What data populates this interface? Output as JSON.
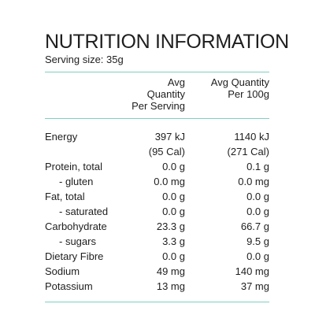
{
  "panel": {
    "title": "NUTRITION INFORMATION",
    "serving_size": "Serving size: 35g"
  },
  "header": {
    "per_serving": [
      "Avg Quantity",
      "Per Serving"
    ],
    "per_100g": [
      "Avg Quantity",
      "Per 100g"
    ]
  },
  "rows": [
    {
      "name": "Energy",
      "indent": false,
      "per_serving": "397 kJ",
      "per_100g": "1140 kJ"
    },
    {
      "name": "",
      "indent": false,
      "per_serving": "(95 Cal)",
      "per_100g": "(271 Cal)"
    },
    {
      "name": "Protein, total",
      "indent": false,
      "per_serving": "0.0 g",
      "per_100g": "0.1 g"
    },
    {
      "name": "- gluten",
      "indent": true,
      "per_serving": "0.0 mg",
      "per_100g": "0.0 mg"
    },
    {
      "name": "Fat, total",
      "indent": false,
      "per_serving": "0.0 g",
      "per_100g": "0.0 g"
    },
    {
      "name": "- saturated",
      "indent": true,
      "per_serving": "0.0 g",
      "per_100g": "0.0 g"
    },
    {
      "name": "Carbohydrate",
      "indent": false,
      "per_serving": "23.3 g",
      "per_100g": "66.7 g"
    },
    {
      "name": "- sugars",
      "indent": true,
      "per_serving": "3.3 g",
      "per_100g": "9.5 g"
    },
    {
      "name": "Dietary Fibre",
      "indent": false,
      "per_serving": "0.0 g",
      "per_100g": "0.0 g"
    },
    {
      "name": "Sodium",
      "indent": false,
      "per_serving": "49 mg",
      "per_100g": "140 mg"
    },
    {
      "name": "Potassium",
      "indent": false,
      "per_serving": "13 mg",
      "per_100g": "37 mg"
    }
  ],
  "colors": {
    "rule": "#7fcfc0",
    "text": "#1e1e1e"
  }
}
